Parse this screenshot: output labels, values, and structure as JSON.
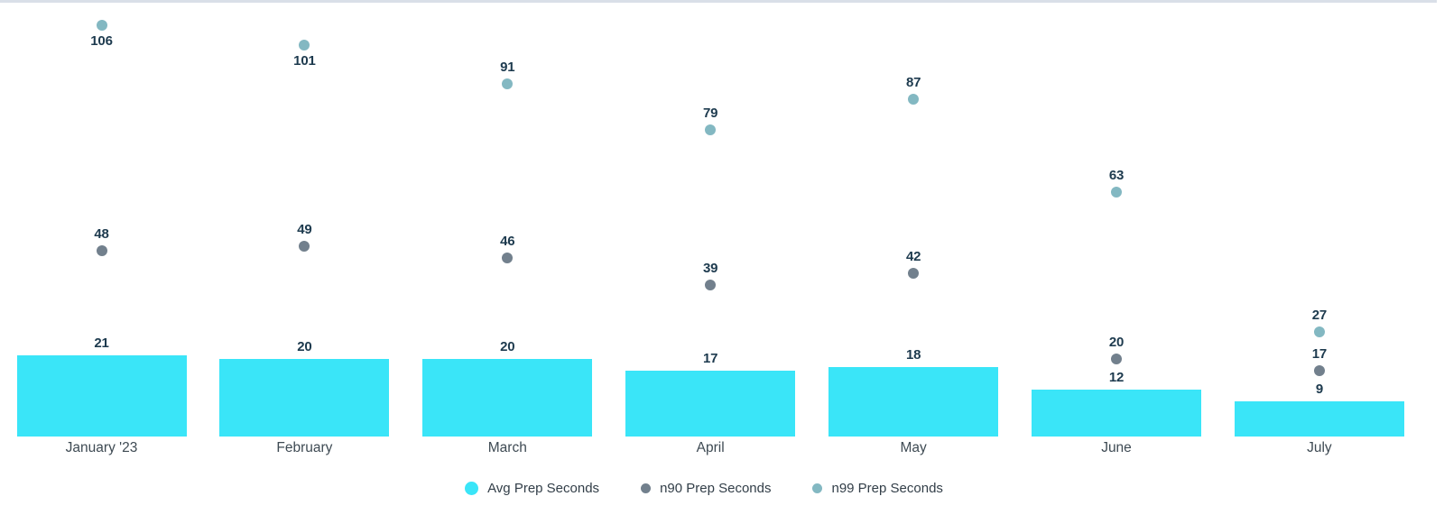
{
  "chart_data": {
    "type": "bar",
    "title": "",
    "xlabel": "",
    "ylabel": "",
    "categories": [
      "January '23",
      "February",
      "March",
      "April",
      "May",
      "June",
      "July"
    ],
    "series": [
      {
        "name": "Avg Prep Seconds",
        "mark": "bar",
        "color": "#3ae5f8",
        "values": [
          21,
          20,
          20,
          17,
          18,
          12,
          9
        ]
      },
      {
        "name": "n90 Prep Seconds",
        "mark": "scatter",
        "color": "#72808d",
        "values": [
          48,
          49,
          46,
          39,
          42,
          20,
          17
        ]
      },
      {
        "name": "n99 Prep Seconds",
        "mark": "scatter",
        "color": "#83b8c2",
        "values": [
          106,
          101,
          91,
          79,
          87,
          63,
          27
        ]
      }
    ],
    "data_labels_shown": true,
    "ylim": [
      0,
      112
    ],
    "grid": false,
    "y_axis_shown": false,
    "legend_position": "bottom"
  },
  "colors": {
    "background": "#ffffff",
    "data_label_text": "#1d3a4e",
    "axis_label_text": "#3e4a53",
    "axis_line": "#d9dfe8",
    "legend_text": "#323e48"
  }
}
